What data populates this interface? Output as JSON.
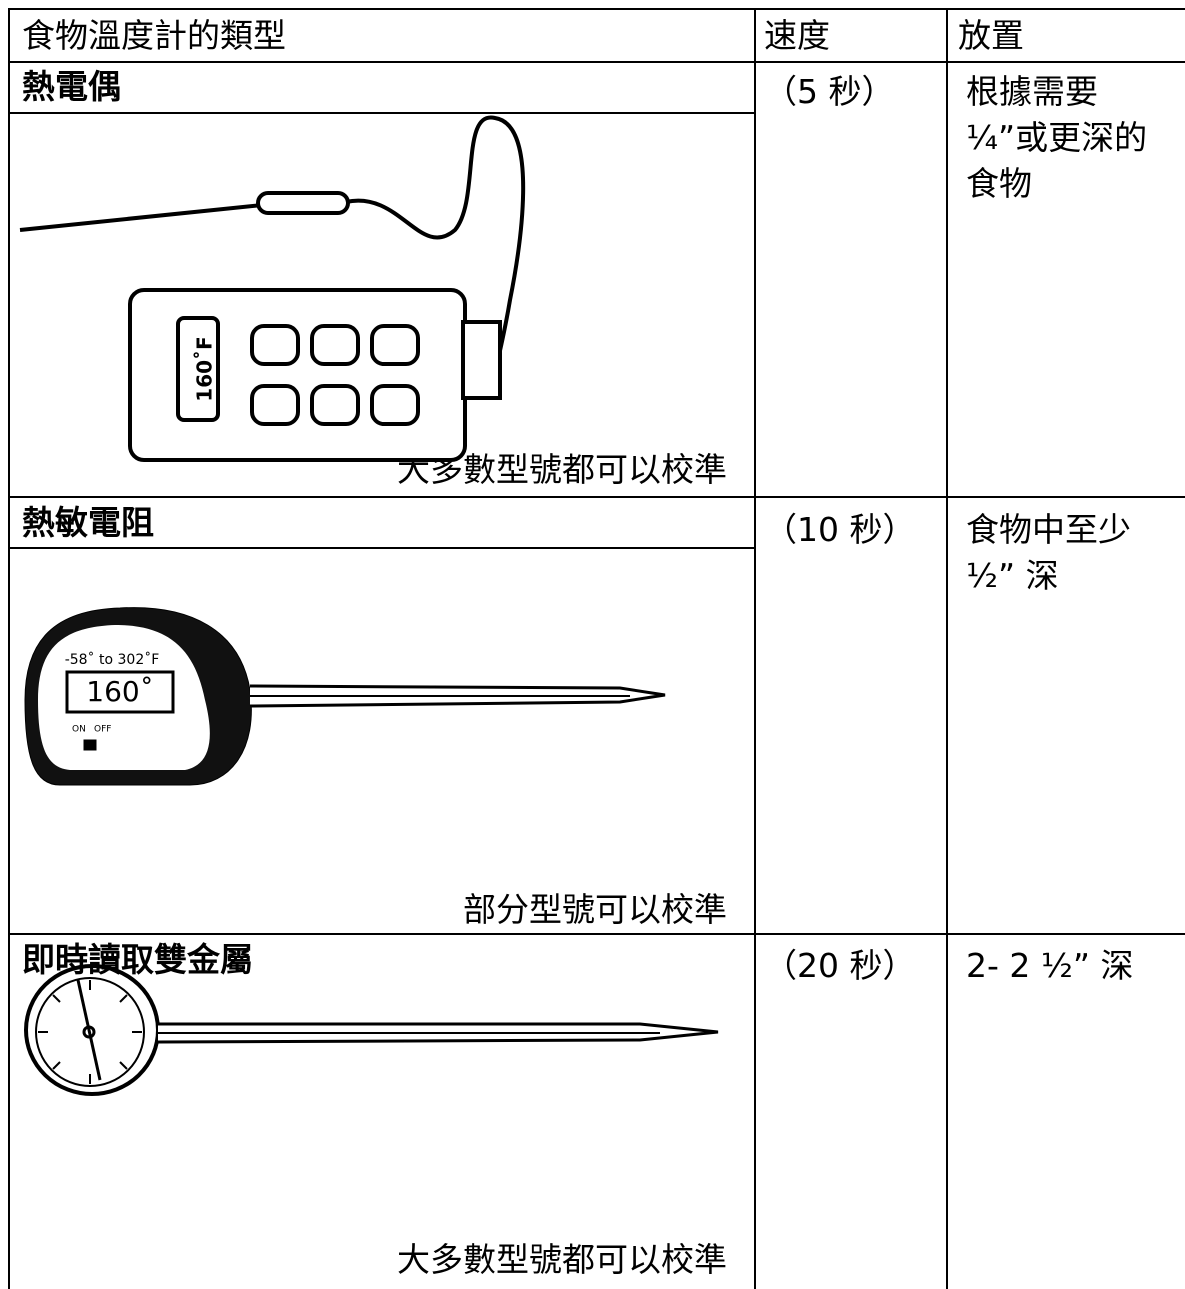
{
  "header": {
    "type": "食物溫度計的類型",
    "speed": "速度",
    "placement": "放置"
  },
  "rows": [
    {
      "name": "熱電偶",
      "speed": "（5 秒）",
      "placement": [
        "根據需要",
        "¼”或更深的",
        "食物"
      ],
      "note": "大多數型號都可以校準",
      "illustration": [
        "160˚F"
      ]
    },
    {
      "name": "熱敏電阻",
      "speed": "（10 秒）",
      "placement": [
        "食物中至少",
        "½” 深"
      ],
      "note": "部分型號可以校準",
      "illustration": [
        "-58˚ to 302˚F",
        "160˚",
        "ON",
        "OFF"
      ]
    },
    {
      "name": "即時讀取雙金屬",
      "speed": "（20 秒）",
      "placement": [
        "2- 2 ½” 深"
      ],
      "note": "大多數型號都可以校準"
    }
  ]
}
